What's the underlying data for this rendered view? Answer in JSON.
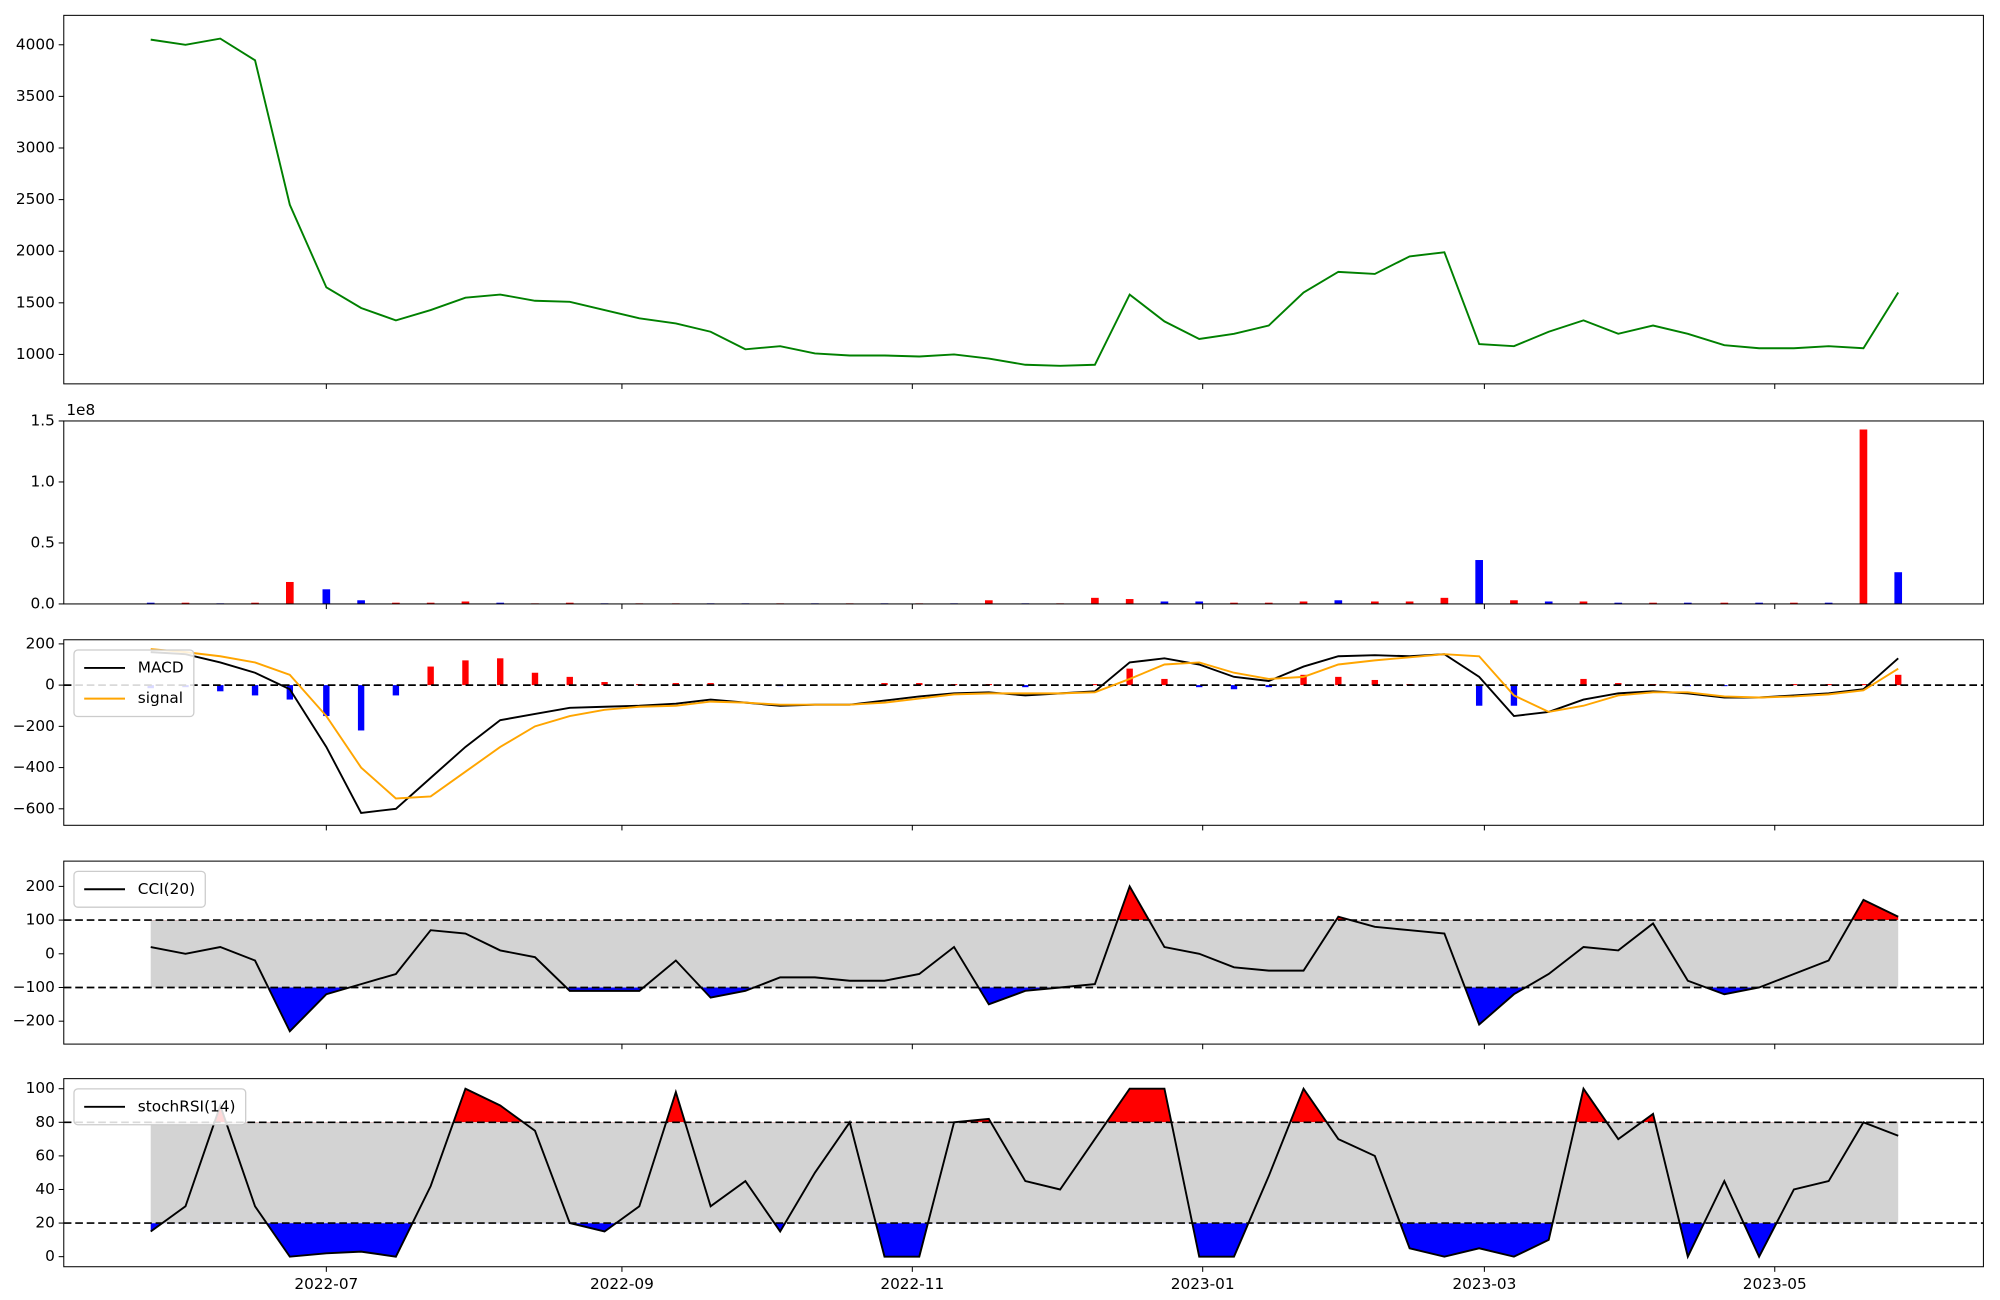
{
  "chart_data": [
    {
      "type": "line",
      "x": [
        2022.395,
        2022.415,
        2022.435,
        2022.455,
        2022.475,
        2022.496,
        2022.516,
        2022.536,
        2022.556,
        2022.576,
        2022.596,
        2022.616,
        2022.636,
        2022.656,
        2022.676,
        2022.697,
        2022.717,
        2022.737,
        2022.757,
        2022.777,
        2022.797,
        2022.817,
        2022.837,
        2022.857,
        2022.877,
        2022.898,
        2022.918,
        2022.938,
        2022.958,
        2022.978,
        2022.998,
        2023.018,
        2023.038,
        2023.058,
        2023.078,
        2023.099,
        2023.119,
        2023.139,
        2023.159,
        2023.179,
        2023.199,
        2023.219,
        2023.239,
        2023.259,
        2023.279,
        2023.3,
        2023.32,
        2023.34,
        2023.36,
        2023.38,
        2023.4
      ],
      "xlim": [
        2022.345,
        2023.449
      ],
      "ylim": [
        715,
        4285
      ],
      "yticks": [
        1000,
        1500,
        2000,
        2500,
        3000,
        3500,
        4000
      ],
      "series": [
        {
          "color": "green",
          "values": [
            4050,
            4000,
            4060,
            3850,
            2450,
            1650,
            1450,
            1330,
            1430,
            1550,
            1580,
            1520,
            1510,
            1430,
            1350,
            1300,
            1220,
            1050,
            1080,
            1010,
            990,
            990,
            980,
            1000,
            960,
            900,
            890,
            900,
            1580,
            1320,
            1150,
            1200,
            1280,
            1600,
            1800,
            1780,
            1950,
            1990,
            1100,
            1080,
            1220,
            1330,
            1200,
            1280,
            1200,
            1090,
            1060,
            1060,
            1080,
            1060,
            1600
          ]
        }
      ]
    },
    {
      "type": "bar",
      "x": [
        2022.395,
        2022.415,
        2022.435,
        2022.455,
        2022.475,
        2022.496,
        2022.516,
        2022.536,
        2022.556,
        2022.576,
        2022.596,
        2022.616,
        2022.636,
        2022.656,
        2022.676,
        2022.697,
        2022.717,
        2022.737,
        2022.757,
        2022.777,
        2022.797,
        2022.817,
        2022.837,
        2022.857,
        2022.877,
        2022.898,
        2022.918,
        2022.938,
        2022.958,
        2022.978,
        2022.998,
        2023.018,
        2023.038,
        2023.058,
        2023.078,
        2023.099,
        2023.119,
        2023.139,
        2023.159,
        2023.179,
        2023.199,
        2023.219,
        2023.239,
        2023.259,
        2023.279,
        2023.3,
        2023.32,
        2023.34,
        2023.36,
        2023.38,
        2023.4
      ],
      "xlim": [
        2022.345,
        2023.449
      ],
      "ylim": [
        0,
        1.5
      ],
      "yticks": [
        {
          "value": 0,
          "label": "0.0"
        },
        {
          "value": 0.5,
          "label": "0.5"
        },
        {
          "value": 1,
          "label": "1.0"
        },
        {
          "value": 1.5,
          "label": "1.5"
        }
      ],
      "offset_label": "1e8",
      "values": [
        0.01,
        0.01,
        0.005,
        0.01,
        0.18,
        0.12,
        0.03,
        0.01,
        0.01,
        0.02,
        0.01,
        0.005,
        0.01,
        0.005,
        0.005,
        0.005,
        0.005,
        0.005,
        0.005,
        0.005,
        0.005,
        0.005,
        0.005,
        0.005,
        0.03,
        0.005,
        0.005,
        0.05,
        0.04,
        0.02,
        0.02,
        0.01,
        0.01,
        0.02,
        0.03,
        0.02,
        0.02,
        0.05,
        0.36,
        0.03,
        0.02,
        0.02,
        0.01,
        0.01,
        0.01,
        0.01,
        0.01,
        0.01,
        0.01,
        1.43,
        0.26
      ],
      "colors": [
        "blue",
        "red",
        "blue",
        "red",
        "red",
        "blue",
        "blue",
        "red",
        "red",
        "red",
        "blue",
        "red",
        "red",
        "blue",
        "red",
        "red",
        "blue",
        "blue",
        "red",
        "blue",
        "red",
        "blue",
        "red",
        "blue",
        "red",
        "blue",
        "red",
        "red",
        "red",
        "blue",
        "blue",
        "red",
        "red",
        "red",
        "blue",
        "red",
        "red",
        "red",
        "blue",
        "red",
        "blue",
        "red",
        "blue",
        "red",
        "blue",
        "red",
        "blue",
        "red",
        "blue",
        "red",
        "blue"
      ]
    },
    {
      "type": "macd",
      "x": [
        2022.395,
        2022.415,
        2022.435,
        2022.455,
        2022.475,
        2022.496,
        2022.516,
        2022.536,
        2022.556,
        2022.576,
        2022.596,
        2022.616,
        2022.636,
        2022.656,
        2022.676,
        2022.697,
        2022.717,
        2022.737,
        2022.757,
        2022.777,
        2022.797,
        2022.817,
        2022.837,
        2022.857,
        2022.877,
        2022.898,
        2022.918,
        2022.938,
        2022.958,
        2022.978,
        2022.998,
        2023.018,
        2023.038,
        2023.058,
        2023.078,
        2023.099,
        2023.119,
        2023.139,
        2023.159,
        2023.179,
        2023.199,
        2023.219,
        2023.239,
        2023.259,
        2023.279,
        2023.3,
        2023.32,
        2023.34,
        2023.36,
        2023.38,
        2023.4
      ],
      "xlim": [
        2022.345,
        2023.449
      ],
      "ylim": [
        -680,
        220
      ],
      "yticks": [
        {
          "value": -600,
          "label": "−600"
        },
        {
          "value": -400,
          "label": "−400"
        },
        {
          "value": -200,
          "label": "−200"
        },
        0,
        200
      ],
      "series": [
        {
          "name": "MACD",
          "color": "black",
          "values": [
            160,
            150,
            110,
            60,
            -20,
            -300,
            -620,
            -600,
            -450,
            -300,
            -170,
            -140,
            -110,
            -105,
            -100,
            -90,
            -70,
            -85,
            -100,
            -95,
            -95,
            -75,
            -55,
            -40,
            -35,
            -50,
            -40,
            -30,
            110,
            130,
            100,
            40,
            20,
            90,
            140,
            145,
            140,
            150,
            40,
            -150,
            -130,
            -70,
            -40,
            -30,
            -40,
            -60,
            -60,
            -50,
            -40,
            -20,
            130
          ]
        },
        {
          "name": "signal",
          "color": "orange",
          "values": [
            175,
            160,
            140,
            110,
            50,
            -150,
            -400,
            -550,
            -540,
            -420,
            -300,
            -200,
            -150,
            -120,
            -105,
            -100,
            -80,
            -85,
            -95,
            -95,
            -95,
            -85,
            -65,
            -45,
            -40,
            -40,
            -40,
            -35,
            30,
            100,
            110,
            60,
            30,
            40,
            100,
            120,
            135,
            150,
            140,
            -50,
            -130,
            -100,
            -50,
            -35,
            -35,
            -55,
            -60,
            -55,
            -45,
            -25,
            80
          ]
        }
      ],
      "histogram": {
        "values": [
          -15,
          -10,
          -30,
          -50,
          -70,
          -150,
          -220,
          -50,
          90,
          120,
          130,
          60,
          40,
          15,
          5,
          10,
          10,
          0,
          -5,
          0,
          0,
          10,
          10,
          5,
          5,
          -10,
          0,
          5,
          80,
          30,
          -10,
          -20,
          -10,
          50,
          40,
          25,
          5,
          0,
          -100,
          -100,
          0,
          30,
          10,
          5,
          -5,
          -5,
          0,
          5,
          5,
          5,
          50
        ],
        "positive_color": "red",
        "negative_color": "blue"
      },
      "reference_lines": [
        0
      ],
      "legend": "upper left"
    },
    {
      "type": "oscillator",
      "x": [
        2022.395,
        2022.415,
        2022.435,
        2022.455,
        2022.475,
        2022.496,
        2022.516,
        2022.536,
        2022.556,
        2022.576,
        2022.596,
        2022.616,
        2022.636,
        2022.656,
        2022.676,
        2022.697,
        2022.717,
        2022.737,
        2022.757,
        2022.777,
        2022.797,
        2022.817,
        2022.837,
        2022.857,
        2022.877,
        2022.898,
        2022.918,
        2022.938,
        2022.958,
        2022.978,
        2022.998,
        2023.018,
        2023.038,
        2023.058,
        2023.078,
        2023.099,
        2023.119,
        2023.139,
        2023.159,
        2023.179,
        2023.199,
        2023.219,
        2023.239,
        2023.259,
        2023.279,
        2023.3,
        2023.32,
        2023.34,
        2023.36,
        2023.38,
        2023.4
      ],
      "xlim": [
        2022.345,
        2023.449
      ],
      "ylim": [
        -268,
        275
      ],
      "yticks": [
        {
          "value": -200,
          "label": "−200"
        },
        {
          "value": -100,
          "label": "−100"
        },
        0,
        100,
        200
      ],
      "series": [
        {
          "name": "CCI(20)",
          "color": "black",
          "values": [
            20,
            0,
            20,
            -20,
            -230,
            -120,
            -90,
            -60,
            70,
            60,
            10,
            -10,
            -110,
            -110,
            -110,
            -20,
            -130,
            -110,
            -70,
            -70,
            -80,
            -80,
            -60,
            20,
            -150,
            -110,
            -100,
            -90,
            200,
            20,
            0,
            -40,
            -50,
            -50,
            110,
            80,
            70,
            60,
            -210,
            -120,
            -60,
            20,
            10,
            90,
            -80,
            -120,
            -100,
            -60,
            -20,
            160,
            110
          ]
        }
      ],
      "band": [
        -100,
        100
      ],
      "band_color": "lightgray",
      "upper_color": "red",
      "lower_color": "blue",
      "legend": "upper left"
    },
    {
      "type": "oscillator",
      "x": [
        2022.395,
        2022.415,
        2022.435,
        2022.455,
        2022.475,
        2022.496,
        2022.516,
        2022.536,
        2022.556,
        2022.576,
        2022.596,
        2022.616,
        2022.636,
        2022.656,
        2022.676,
        2022.697,
        2022.717,
        2022.737,
        2022.757,
        2022.777,
        2022.797,
        2022.817,
        2022.837,
        2022.857,
        2022.877,
        2022.898,
        2022.918,
        2022.938,
        2022.958,
        2022.978,
        2022.998,
        2023.018,
        2023.038,
        2023.058,
        2023.078,
        2023.099,
        2023.119,
        2023.139,
        2023.159,
        2023.179,
        2023.199,
        2023.219,
        2023.239,
        2023.259,
        2023.279,
        2023.3,
        2023.32,
        2023.34,
        2023.36,
        2023.38,
        2023.4
      ],
      "xlim": [
        2022.345,
        2023.449
      ],
      "ylim": [
        -6,
        106
      ],
      "yticks": [
        0,
        20,
        40,
        60,
        80,
        100
      ],
      "xticks": [
        {
          "value": 2022.496,
          "label": "2022-07"
        },
        {
          "value": 2022.666,
          "label": "2022-09"
        },
        {
          "value": 2022.833,
          "label": "2022-11"
        },
        {
          "value": 2023.0,
          "label": "2023-01"
        },
        {
          "value": 2023.162,
          "label": "2023-03"
        },
        {
          "value": 2023.329,
          "label": "2023-05"
        }
      ],
      "series": [
        {
          "name": "stochRSI(14)",
          "color": "black",
          "values": [
            15,
            30,
            90,
            30,
            0,
            2,
            3,
            0,
            42,
            100,
            90,
            75,
            20,
            15,
            30,
            98,
            30,
            45,
            15,
            50,
            80,
            0,
            0,
            80,
            82,
            45,
            40,
            70,
            100,
            100,
            0,
            0,
            48,
            100,
            70,
            60,
            5,
            0,
            5,
            0,
            10,
            100,
            70,
            85,
            0,
            45,
            0,
            40,
            45,
            80,
            72
          ]
        }
      ],
      "band": [
        20,
        80
      ],
      "band_color": "lightgray",
      "upper_color": "red",
      "lower_color": "blue",
      "legend": "upper left"
    }
  ]
}
